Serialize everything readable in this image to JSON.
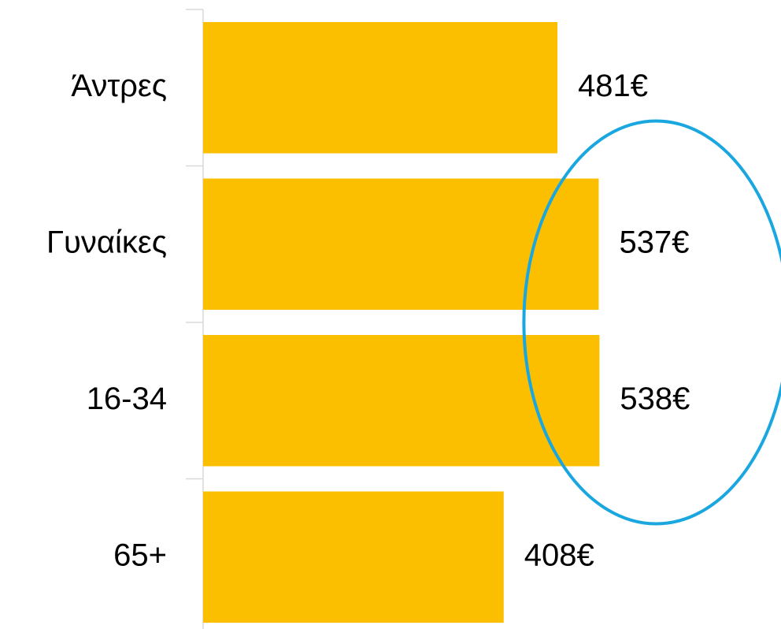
{
  "chart_data": {
    "type": "bar",
    "orientation": "horizontal",
    "categories": [
      "Άντρες",
      "Γυναίκες",
      "16-34",
      "65+"
    ],
    "values": [
      481,
      537,
      538,
      408
    ],
    "value_labels": [
      "481€",
      "537€",
      "538€",
      "408€"
    ],
    "title": "",
    "xlabel": "",
    "ylabel": "",
    "xlim": [
      0,
      700
    ],
    "grid": false,
    "legend": "none",
    "highlight": {
      "shape": "ellipse",
      "categories": [
        "Γυναίκες",
        "16-34"
      ],
      "color": "#1aa7e0"
    },
    "colors": {
      "bar": "#fcbf00",
      "axis": "#d9d9d9",
      "text": "#000000"
    }
  }
}
